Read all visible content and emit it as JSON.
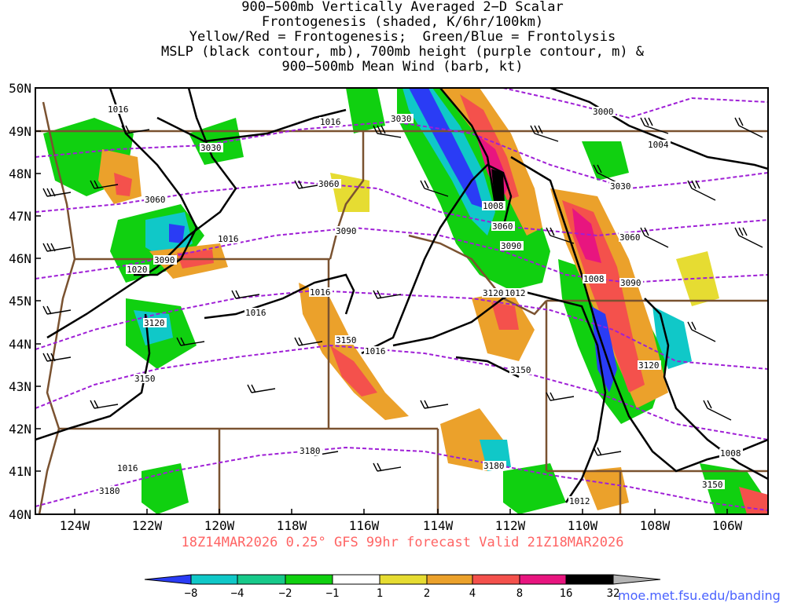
{
  "title": {
    "line1": "900−500mb Vertically Averaged 2−D Scalar",
    "line2": "Frontogenesis (shaded, K/6hr/100km)",
    "line3": "Yellow/Red = Frontogenesis;  Green/Blue = Frontolysis",
    "line4": "MSLP (black contour, mb), 700mb height (purple contour, m) &",
    "line5": "900−500mb Mean Wind (barb, kt)"
  },
  "axes": {
    "lat_labels": [
      "50N",
      "49N",
      "48N",
      "47N",
      "46N",
      "45N",
      "44N",
      "43N",
      "42N",
      "41N",
      "40N"
    ],
    "lon_labels": [
      "124W",
      "122W",
      "120W",
      "118W",
      "116W",
      "114W",
      "112W",
      "110W",
      "108W",
      "106W"
    ]
  },
  "contour_labels": {
    "mslp": [
      "1016",
      "1016",
      "1016",
      "1020",
      "1016",
      "1016",
      "1016",
      "1008",
      "1012",
      "1012",
      "1008",
      "1004",
      "1008",
      "1016",
      "1012"
    ],
    "height": [
      "3030",
      "3060",
      "3090",
      "3120",
      "3150",
      "3180",
      "3030",
      "3060",
      "3090",
      "3120",
      "3150",
      "3180",
      "3000",
      "3030",
      "3060",
      "3090",
      "3120",
      "3150",
      "3180",
      "3060",
      "3090",
      "3150"
    ]
  },
  "footer": "18Z14MAR2026 0.25° GFS 99hr forecast Valid 21Z18MAR2026",
  "colorbar": {
    "labels": [
      "−8",
      "−4",
      "−2",
      "−1",
      "1",
      "2",
      "4",
      "8",
      "16",
      "32"
    ],
    "colors": [
      "#2a3cf5",
      "#10c8c8",
      "#17c98a",
      "#10d010",
      "#ffffff",
      "#e6dc32",
      "#eba12b",
      "#f4514c",
      "#e8157f",
      "#000000",
      "#b4b4b4"
    ]
  },
  "colors": {
    "mslp": "#000000",
    "height": "#9f1fd6",
    "borders": "#7a5230",
    "footer": "#ff6464",
    "credit": "#4a62ff"
  },
  "credit": "moe.met.fsu.edu/banding"
}
